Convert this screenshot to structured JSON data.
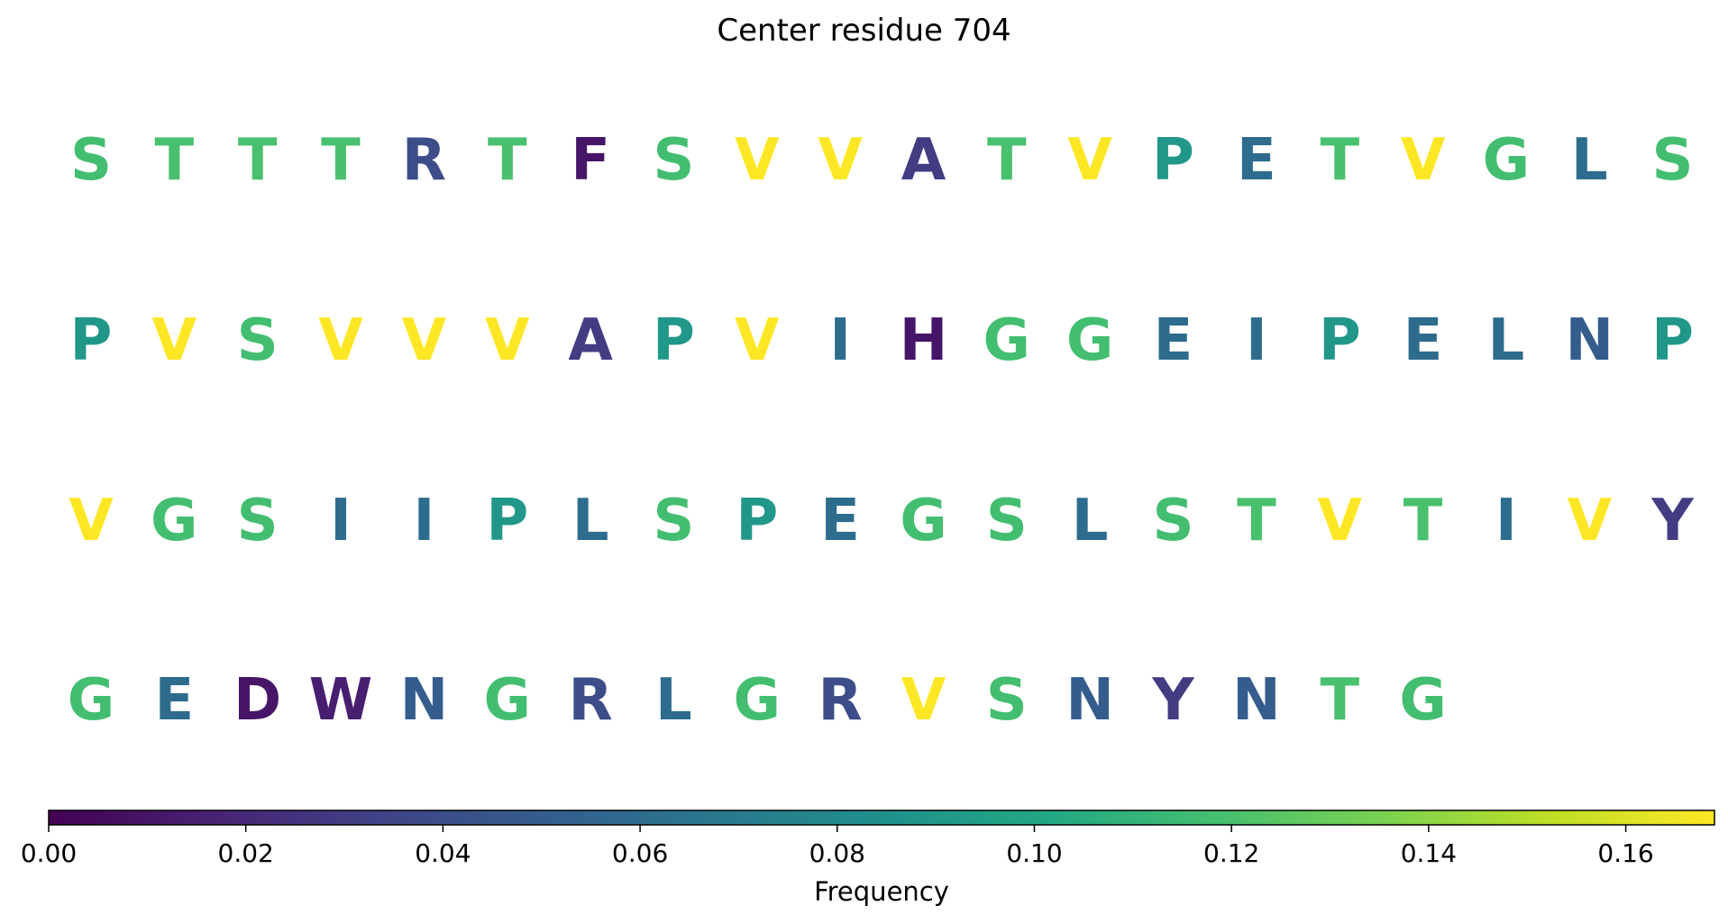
{
  "chart_data": {
    "type": "heatmap",
    "title": "Center residue 704",
    "colorbar": {
      "label": "Frequency",
      "min": 0.0,
      "max": 0.169,
      "ticks": [
        "0.00",
        "0.02",
        "0.04",
        "0.06",
        "0.08",
        "0.10",
        "0.12",
        "0.14",
        "0.16"
      ],
      "colormap": "viridis"
    },
    "rows": [
      {
        "residues": [
          "S",
          "T",
          "T",
          "T",
          "R",
          "T",
          "F",
          "S",
          "V",
          "V",
          "A",
          "T",
          "V",
          "P",
          "E",
          "T",
          "V",
          "G",
          "L",
          "S"
        ],
        "frequencies": [
          0.118,
          0.12,
          0.12,
          0.12,
          0.04,
          0.12,
          0.01,
          0.118,
          0.169,
          0.169,
          0.03,
          0.12,
          0.169,
          0.09,
          0.06,
          0.12,
          0.169,
          0.118,
          0.06,
          0.118
        ]
      },
      {
        "residues": [
          "P",
          "V",
          "S",
          "V",
          "V",
          "V",
          "A",
          "P",
          "V",
          "I",
          "H",
          "G",
          "G",
          "E",
          "I",
          "P",
          "E",
          "L",
          "N",
          "P"
        ],
        "frequencies": [
          0.09,
          0.169,
          0.118,
          0.169,
          0.169,
          0.169,
          0.03,
          0.09,
          0.169,
          0.06,
          0.01,
          0.118,
          0.118,
          0.06,
          0.06,
          0.09,
          0.06,
          0.06,
          0.05,
          0.09
        ]
      },
      {
        "residues": [
          "V",
          "G",
          "S",
          "I",
          "I",
          "P",
          "L",
          "S",
          "P",
          "E",
          "G",
          "S",
          "L",
          "S",
          "T",
          "V",
          "T",
          "I",
          "V",
          "Y"
        ],
        "frequencies": [
          0.169,
          0.118,
          0.118,
          0.06,
          0.06,
          0.09,
          0.06,
          0.118,
          0.09,
          0.06,
          0.118,
          0.118,
          0.06,
          0.118,
          0.12,
          0.169,
          0.12,
          0.06,
          0.169,
          0.03
        ]
      },
      {
        "residues": [
          "G",
          "E",
          "D",
          "W",
          "N",
          "G",
          "R",
          "L",
          "G",
          "R",
          "V",
          "S",
          "N",
          "Y",
          "N",
          "T",
          "G"
        ],
        "frequencies": [
          0.118,
          0.06,
          0.01,
          0.015,
          0.05,
          0.118,
          0.04,
          0.06,
          0.118,
          0.04,
          0.169,
          0.118,
          0.05,
          0.03,
          0.05,
          0.12,
          0.118
        ]
      }
    ]
  }
}
